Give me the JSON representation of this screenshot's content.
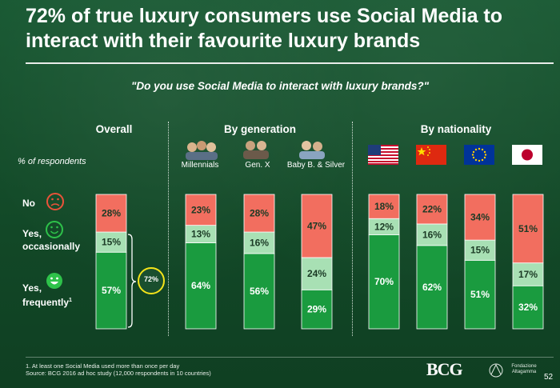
{
  "title": "72% of true luxury consumers use Social Media to interact with their favourite luxury brands",
  "question": "\"Do you use Social Media to interact with luxury brands?\"",
  "y_axis_label": "% of respondents",
  "sections": {
    "overall": "Overall",
    "generation": "By generation",
    "nationality": "By nationality"
  },
  "legend": {
    "no": "No",
    "yes_occasionally": "Yes, occasionally",
    "yes_frequently_main": "Yes, frequently",
    "yes_frequently_sup": "1"
  },
  "total_callout": "72%",
  "colors": {
    "no": "#f26e5f",
    "occasionally": "#a8e0b4",
    "frequently": "#1a9b3f",
    "legend_no": "#e8533a",
    "legend_yes": "#2ec24a"
  },
  "chart_data": {
    "type": "bar",
    "stacked": true,
    "percent": true,
    "series_order_bottom_to_top": [
      "Yes, frequently",
      "Yes, occasionally",
      "No"
    ],
    "categories": [
      "Overall",
      "Millennials",
      "Gen. X",
      "Baby B. & Silver",
      "USA",
      "China",
      "EU",
      "Japan"
    ],
    "category_labels": [
      "",
      "Millennials",
      "Gen. X",
      "Baby B. & Silver",
      "",
      "",
      "",
      ""
    ],
    "series": [
      {
        "name": "Yes, frequently",
        "values": [
          57,
          64,
          56,
          29,
          70,
          62,
          51,
          32
        ]
      },
      {
        "name": "Yes, occasionally",
        "values": [
          15,
          13,
          16,
          24,
          12,
          16,
          15,
          17
        ]
      },
      {
        "name": "No",
        "values": [
          28,
          23,
          28,
          47,
          18,
          22,
          34,
          51
        ]
      }
    ],
    "ylim": [
      0,
      100
    ]
  },
  "footnote_1": "1. At least one Social Media used more than once per day",
  "source": "Source: BCG 2016 ad hoc study (12,000 respondents in 10 countries)",
  "logo_bcg": "BCG",
  "logo_altagamma": "Fondazione Altagamma",
  "page_number": "52"
}
